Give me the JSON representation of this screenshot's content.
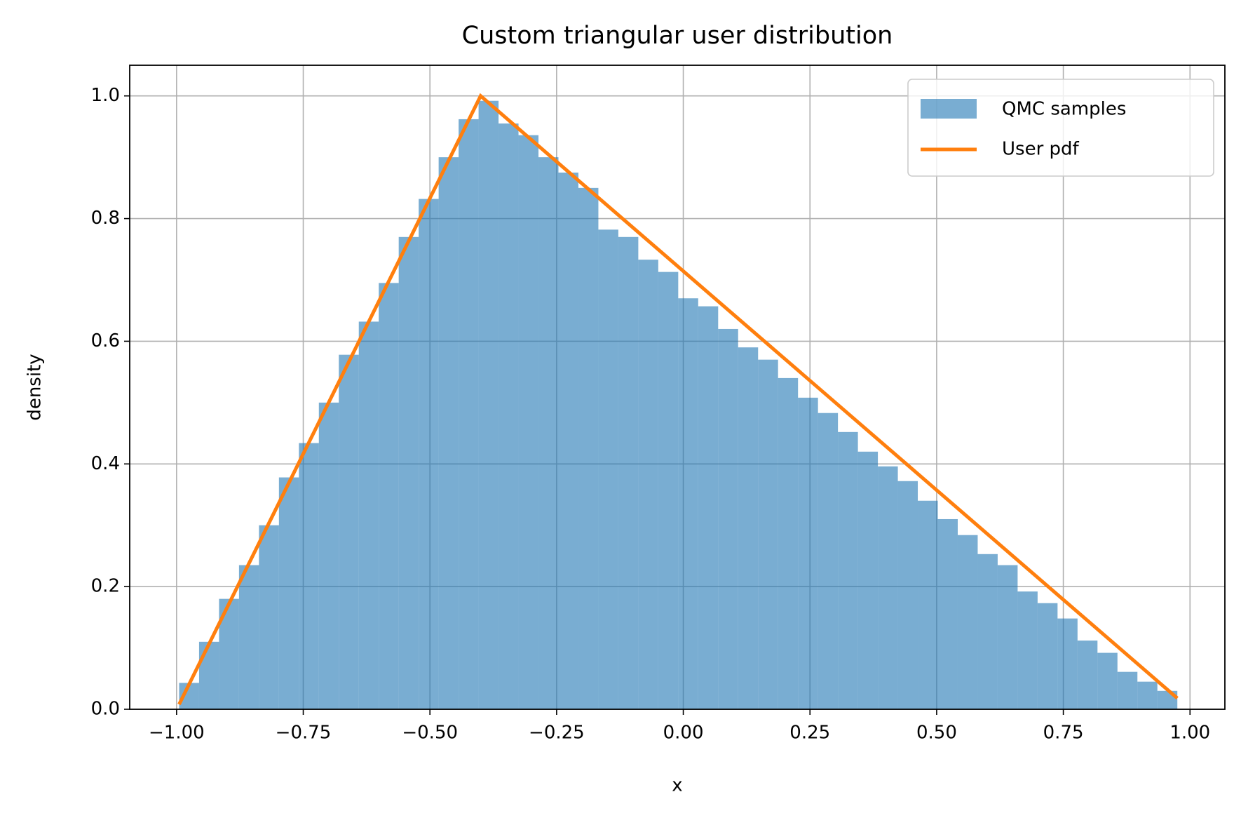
{
  "chart_data": {
    "type": "histogram",
    "title": "Custom triangular user distribution",
    "xlabel": "x",
    "ylabel": "density",
    "bins": [
      -0.995,
      -0.9556,
      -0.9162,
      -0.8768,
      -0.8374,
      -0.798,
      -0.7586,
      -0.7192,
      -0.6798,
      -0.6404,
      -0.601,
      -0.5616,
      -0.5222,
      -0.4828,
      -0.4434,
      -0.404,
      -0.3646,
      -0.3252,
      -0.2858,
      -0.2464,
      -0.207,
      -0.1676,
      -0.1282,
      -0.0888,
      -0.0494,
      -0.01,
      0.0294,
      0.0688,
      0.1082,
      0.1476,
      0.187,
      0.2264,
      0.2658,
      0.3052,
      0.3446,
      0.384,
      0.4234,
      0.4628,
      0.5022,
      0.5416,
      0.581,
      0.6204,
      0.6598,
      0.6992,
      0.7386,
      0.778,
      0.8174,
      0.8568,
      0.8962,
      0.9356,
      0.975
    ],
    "values": [
      0.043,
      0.11,
      0.18,
      0.235,
      0.3,
      0.378,
      0.434,
      0.5,
      0.578,
      0.632,
      0.695,
      0.77,
      0.832,
      0.9,
      0.962,
      0.992,
      0.955,
      0.936,
      0.9,
      0.875,
      0.85,
      0.782,
      0.77,
      0.733,
      0.713,
      0.67,
      0.657,
      0.62,
      0.59,
      0.57,
      0.54,
      0.508,
      0.483,
      0.452,
      0.42,
      0.396,
      0.372,
      0.34,
      0.31,
      0.284,
      0.253,
      0.235,
      0.192,
      0.173,
      0.148,
      0.112,
      0.092,
      0.061,
      0.045,
      0.03
    ],
    "name": "QMC samples",
    "color": "#1f77b4",
    "alpha": 0.6,
    "lines": [
      {
        "name": "User pdf",
        "color": "#ff7f0e",
        "x": [
          -0.995,
          -0.4,
          0.975
        ],
        "y": [
          0.008,
          1.0,
          0.018
        ]
      }
    ],
    "xlim": [
      -1.0925,
      1.0688
    ],
    "ylim": [
      0,
      1.05
    ],
    "xticks": [
      {
        "value": -1,
        "label": "−1.00"
      },
      {
        "value": -0.75,
        "label": "−0.75"
      },
      {
        "value": -0.5,
        "label": "−0.50"
      },
      {
        "value": -0.25,
        "label": "−0.25"
      },
      {
        "value": 0,
        "label": "0.00"
      },
      0.25,
      {
        "value": 0.5,
        "label": "0.50"
      },
      0.75,
      {
        "value": 1,
        "label": "1.00"
      }
    ],
    "yticks": [
      {
        "value": 0,
        "label": "0.0"
      },
      0.2,
      0.4,
      0.6,
      0.8,
      {
        "value": 1,
        "label": "1.0"
      }
    ],
    "grid": true,
    "legend": "upper right"
  }
}
